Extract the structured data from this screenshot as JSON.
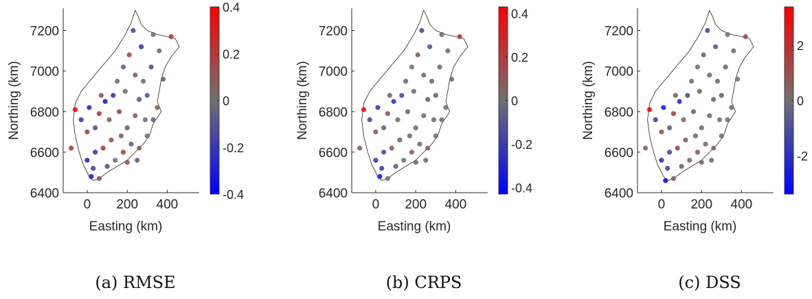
{
  "figure": {
    "panels": [
      {
        "caption": "(a) RMSE",
        "xlabel": "Easting (km)",
        "ylabel": "Northing (km)",
        "colorbar": {
          "ticks": [
            "0.4",
            "0.2",
            "0",
            "-0.2",
            "-0.4"
          ],
          "range": [
            -0.4,
            0.4
          ]
        }
      },
      {
        "caption": "(b) CRPS",
        "xlabel": "Easting (km)",
        "ylabel": "Northing (km)",
        "colorbar": {
          "ticks": [
            "0.4",
            "0.2",
            "0",
            "-0.2",
            "-0.4"
          ],
          "range": [
            -0.43,
            0.43
          ]
        }
      },
      {
        "caption": "(c) DSS",
        "xlabel": "Easting (km)",
        "ylabel": "Northing (km)",
        "colorbar": {
          "ticks": [
            "2",
            "0",
            "-2"
          ],
          "range": [
            -3.4,
            3.4
          ]
        }
      }
    ],
    "colormap": {
      "low": "#0000ff",
      "mid": "#707070",
      "high": "#ff0000"
    }
  },
  "chart_data": [
    {
      "type": "scatter",
      "title": "",
      "caption": "(a) RMSE",
      "xlabel": "Easting (km)",
      "ylabel": "Northing (km)",
      "xlim": [
        -120,
        560
      ],
      "ylim": [
        6400,
        7310
      ],
      "xticks": [
        0,
        200,
        400
      ],
      "yticks": [
        6400,
        6600,
        6800,
        7000,
        7200
      ],
      "colorbar": {
        "min": -0.4,
        "max": 0.4,
        "ticks": [
          -0.4,
          -0.2,
          0,
          0.2,
          0.4
        ]
      },
      "points": [
        {
          "x": -60,
          "y": 6810,
          "v": 0.4
        },
        {
          "x": -80,
          "y": 6620,
          "v": 0.2
        },
        {
          "x": 20,
          "y": 6480,
          "v": -0.3
        },
        {
          "x": 60,
          "y": 6470,
          "v": 0.1
        },
        {
          "x": 30,
          "y": 6520,
          "v": -0.15
        },
        {
          "x": 100,
          "y": 6530,
          "v": -0.1
        },
        {
          "x": 140,
          "y": 6560,
          "v": 0.0
        },
        {
          "x": 180,
          "y": 6600,
          "v": 0.15
        },
        {
          "x": 220,
          "y": 6640,
          "v": -0.05
        },
        {
          "x": 260,
          "y": 6620,
          "v": 0.05
        },
        {
          "x": 300,
          "y": 6680,
          "v": 0.0
        },
        {
          "x": 330,
          "y": 6760,
          "v": -0.05
        },
        {
          "x": 350,
          "y": 6820,
          "v": 0.05
        },
        {
          "x": 300,
          "y": 6880,
          "v": -0.1
        },
        {
          "x": 280,
          "y": 6950,
          "v": 0.0
        },
        {
          "x": 320,
          "y": 7020,
          "v": -0.1
        },
        {
          "x": 360,
          "y": 7100,
          "v": 0.0
        },
        {
          "x": 420,
          "y": 7170,
          "v": 0.2
        },
        {
          "x": 330,
          "y": 7180,
          "v": 0.0
        },
        {
          "x": 270,
          "y": 7120,
          "v": -0.2
        },
        {
          "x": 230,
          "y": 7200,
          "v": -0.15
        },
        {
          "x": 210,
          "y": 7080,
          "v": 0.15
        },
        {
          "x": 180,
          "y": 7020,
          "v": -0.05
        },
        {
          "x": 150,
          "y": 6950,
          "v": 0.0
        },
        {
          "x": 130,
          "y": 6880,
          "v": -0.2
        },
        {
          "x": 90,
          "y": 6850,
          "v": -0.3
        },
        {
          "x": 60,
          "y": 6790,
          "v": 0.2
        },
        {
          "x": 40,
          "y": 6720,
          "v": -0.1
        },
        {
          "x": 0,
          "y": 6700,
          "v": 0.15
        },
        {
          "x": -30,
          "y": 6760,
          "v": -0.2
        },
        {
          "x": 10,
          "y": 6820,
          "v": -0.25
        },
        {
          "x": 70,
          "y": 6880,
          "v": 0.1
        },
        {
          "x": 110,
          "y": 6760,
          "v": 0.05
        },
        {
          "x": 160,
          "y": 6800,
          "v": 0.15
        },
        {
          "x": 200,
          "y": 6720,
          "v": -0.05
        },
        {
          "x": 240,
          "y": 6780,
          "v": 0.05
        },
        {
          "x": 260,
          "y": 6860,
          "v": -0.1
        },
        {
          "x": 190,
          "y": 6900,
          "v": 0.0
        },
        {
          "x": 240,
          "y": 6980,
          "v": 0.05
        },
        {
          "x": 80,
          "y": 6620,
          "v": 0.2
        },
        {
          "x": 120,
          "y": 6660,
          "v": 0.1
        },
        {
          "x": 40,
          "y": 6600,
          "v": -0.2
        },
        {
          "x": 0,
          "y": 6560,
          "v": -0.25
        },
        {
          "x": 170,
          "y": 6680,
          "v": 0.05
        },
        {
          "x": 290,
          "y": 6760,
          "v": 0.0
        },
        {
          "x": 380,
          "y": 6960,
          "v": -0.05
        },
        {
          "x": 200,
          "y": 6550,
          "v": 0.1
        },
        {
          "x": 250,
          "y": 6560,
          "v": -0.05
        }
      ]
    },
    {
      "type": "scatter",
      "title": "",
      "caption": "(b) CRPS",
      "xlabel": "Easting (km)",
      "ylabel": "Northing (km)",
      "xlim": [
        -120,
        560
      ],
      "ylim": [
        6400,
        7310
      ],
      "xticks": [
        0,
        200,
        400
      ],
      "yticks": [
        6400,
        6600,
        6800,
        7000,
        7200
      ],
      "colorbar": {
        "min": -0.43,
        "max": 0.43,
        "ticks": [
          -0.4,
          -0.2,
          0,
          0.2,
          0.4
        ]
      },
      "points": [
        {
          "x": -60,
          "y": 6810,
          "v": 0.4
        },
        {
          "x": -80,
          "y": 6620,
          "v": 0.05
        },
        {
          "x": 20,
          "y": 6480,
          "v": -0.35
        },
        {
          "x": 60,
          "y": 6470,
          "v": 0.0
        },
        {
          "x": 30,
          "y": 6520,
          "v": -0.2
        },
        {
          "x": 100,
          "y": 6530,
          "v": -0.05
        },
        {
          "x": 140,
          "y": 6560,
          "v": 0.0
        },
        {
          "x": 180,
          "y": 6600,
          "v": 0.05
        },
        {
          "x": 220,
          "y": 6640,
          "v": 0.0
        },
        {
          "x": 260,
          "y": 6620,
          "v": 0.05
        },
        {
          "x": 300,
          "y": 6680,
          "v": 0.0
        },
        {
          "x": 330,
          "y": 6760,
          "v": 0.0
        },
        {
          "x": 350,
          "y": 6820,
          "v": 0.0
        },
        {
          "x": 300,
          "y": 6880,
          "v": -0.05
        },
        {
          "x": 280,
          "y": 6950,
          "v": 0.0
        },
        {
          "x": 320,
          "y": 7020,
          "v": 0.0
        },
        {
          "x": 360,
          "y": 7100,
          "v": 0.0
        },
        {
          "x": 420,
          "y": 7170,
          "v": 0.2
        },
        {
          "x": 330,
          "y": 7180,
          "v": 0.0
        },
        {
          "x": 270,
          "y": 7120,
          "v": -0.1
        },
        {
          "x": 230,
          "y": 7200,
          "v": -0.15
        },
        {
          "x": 210,
          "y": 7080,
          "v": 0.05
        },
        {
          "x": 180,
          "y": 7020,
          "v": 0.0
        },
        {
          "x": 150,
          "y": 6950,
          "v": 0.0
        },
        {
          "x": 130,
          "y": 6880,
          "v": -0.15
        },
        {
          "x": 90,
          "y": 6850,
          "v": -0.25
        },
        {
          "x": 60,
          "y": 6790,
          "v": 0.1
        },
        {
          "x": 40,
          "y": 6720,
          "v": -0.05
        },
        {
          "x": 0,
          "y": 6700,
          "v": 0.05
        },
        {
          "x": -30,
          "y": 6760,
          "v": -0.15
        },
        {
          "x": 10,
          "y": 6820,
          "v": -0.2
        },
        {
          "x": 70,
          "y": 6880,
          "v": 0.05
        },
        {
          "x": 110,
          "y": 6760,
          "v": 0.0
        },
        {
          "x": 160,
          "y": 6800,
          "v": 0.05
        },
        {
          "x": 200,
          "y": 6720,
          "v": 0.0
        },
        {
          "x": 240,
          "y": 6780,
          "v": 0.0
        },
        {
          "x": 260,
          "y": 6860,
          "v": -0.05
        },
        {
          "x": 190,
          "y": 6900,
          "v": 0.0
        },
        {
          "x": 240,
          "y": 6980,
          "v": 0.0
        },
        {
          "x": 80,
          "y": 6620,
          "v": 0.1
        },
        {
          "x": 120,
          "y": 6660,
          "v": 0.05
        },
        {
          "x": 40,
          "y": 6600,
          "v": -0.15
        },
        {
          "x": 0,
          "y": 6560,
          "v": -0.2
        },
        {
          "x": 170,
          "y": 6680,
          "v": 0.0
        },
        {
          "x": 290,
          "y": 6760,
          "v": 0.0
        },
        {
          "x": 380,
          "y": 6960,
          "v": 0.0
        },
        {
          "x": 200,
          "y": 6550,
          "v": 0.05
        },
        {
          "x": 250,
          "y": 6560,
          "v": 0.0
        }
      ]
    },
    {
      "type": "scatter",
      "title": "",
      "caption": "(c) DSS",
      "xlabel": "Easting (km)",
      "ylabel": "Northing (km)",
      "xlim": [
        -120,
        560
      ],
      "ylim": [
        6400,
        7310
      ],
      "xticks": [
        0,
        200,
        400
      ],
      "yticks": [
        6400,
        6600,
        6800,
        7000,
        7200
      ],
      "colorbar": {
        "min": -3.4,
        "max": 3.4,
        "ticks": [
          -2,
          0,
          2
        ]
      },
      "points": [
        {
          "x": -60,
          "y": 6810,
          "v": 3.2
        },
        {
          "x": -80,
          "y": 6620,
          "v": 0.5
        },
        {
          "x": 20,
          "y": 6460,
          "v": -3.0
        },
        {
          "x": 60,
          "y": 6470,
          "v": 0.4
        },
        {
          "x": 30,
          "y": 6520,
          "v": -1.5
        },
        {
          "x": 100,
          "y": 6530,
          "v": -0.4
        },
        {
          "x": 140,
          "y": 6560,
          "v": 0.2
        },
        {
          "x": 180,
          "y": 6600,
          "v": 0.6
        },
        {
          "x": 220,
          "y": 6640,
          "v": 0.0
        },
        {
          "x": 260,
          "y": 6620,
          "v": 0.4
        },
        {
          "x": 300,
          "y": 6680,
          "v": 0.0
        },
        {
          "x": 330,
          "y": 6760,
          "v": 0.0
        },
        {
          "x": 350,
          "y": 6820,
          "v": 0.3
        },
        {
          "x": 300,
          "y": 6880,
          "v": -0.4
        },
        {
          "x": 280,
          "y": 6950,
          "v": 0.0
        },
        {
          "x": 320,
          "y": 7020,
          "v": -0.3
        },
        {
          "x": 360,
          "y": 7100,
          "v": 0.0
        },
        {
          "x": 420,
          "y": 7170,
          "v": 1.0
        },
        {
          "x": 330,
          "y": 7180,
          "v": 0.0
        },
        {
          "x": 270,
          "y": 7120,
          "v": -0.8
        },
        {
          "x": 230,
          "y": 7200,
          "v": -1.2
        },
        {
          "x": 210,
          "y": 7080,
          "v": 0.5
        },
        {
          "x": 180,
          "y": 7020,
          "v": 0.0
        },
        {
          "x": 150,
          "y": 6950,
          "v": 0.0
        },
        {
          "x": 130,
          "y": 6880,
          "v": -1.0
        },
        {
          "x": 90,
          "y": 6850,
          "v": -2.0
        },
        {
          "x": 60,
          "y": 6790,
          "v": 1.5
        },
        {
          "x": 40,
          "y": 6720,
          "v": -0.5
        },
        {
          "x": 0,
          "y": 6700,
          "v": 0.8
        },
        {
          "x": -30,
          "y": 6760,
          "v": -1.5
        },
        {
          "x": 10,
          "y": 6820,
          "v": -2.5
        },
        {
          "x": 70,
          "y": 6880,
          "v": 0.5
        },
        {
          "x": 110,
          "y": 6760,
          "v": 0.2
        },
        {
          "x": 160,
          "y": 6800,
          "v": 0.6
        },
        {
          "x": 200,
          "y": 6720,
          "v": 0.0
        },
        {
          "x": 240,
          "y": 6780,
          "v": 0.3
        },
        {
          "x": 260,
          "y": 6860,
          "v": -0.3
        },
        {
          "x": 190,
          "y": 6900,
          "v": 0.0
        },
        {
          "x": 240,
          "y": 6980,
          "v": 0.3
        },
        {
          "x": 80,
          "y": 6620,
          "v": 1.2
        },
        {
          "x": 120,
          "y": 6660,
          "v": 0.5
        },
        {
          "x": 40,
          "y": 6600,
          "v": -1.2
        },
        {
          "x": 0,
          "y": 6560,
          "v": -2.0
        },
        {
          "x": 170,
          "y": 6680,
          "v": 0.3
        },
        {
          "x": 290,
          "y": 6760,
          "v": 0.0
        },
        {
          "x": 380,
          "y": 6960,
          "v": 0.0
        },
        {
          "x": 200,
          "y": 6550,
          "v": 0.4
        },
        {
          "x": 250,
          "y": 6560,
          "v": 0.0
        }
      ]
    }
  ]
}
